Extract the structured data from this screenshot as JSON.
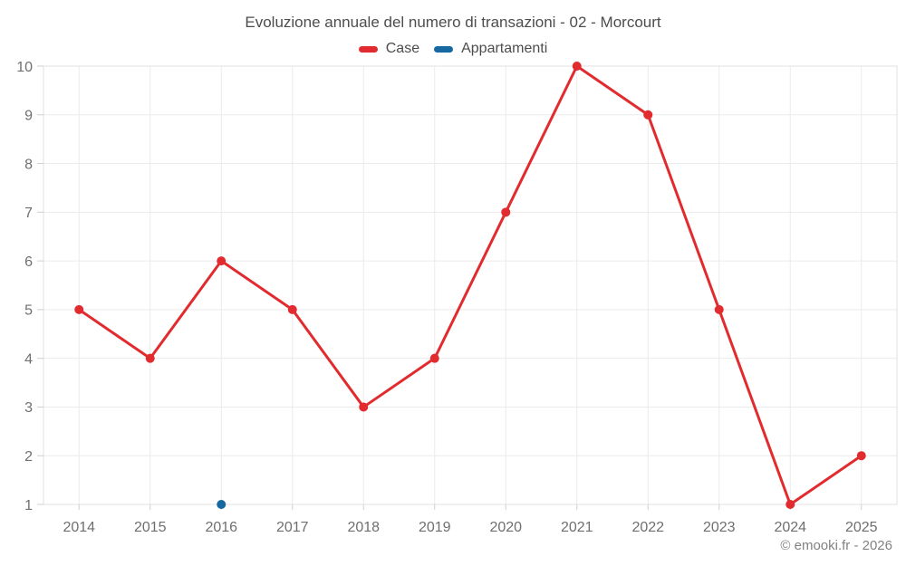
{
  "footer": {
    "copyright": "© emooki.fr - 2026"
  },
  "chart_data": {
    "type": "line",
    "title": "Evoluzione annuale del numero di transazioni - 02 - Morcourt",
    "categories": [
      "2014",
      "2015",
      "2016",
      "2017",
      "2018",
      "2019",
      "2020",
      "2021",
      "2022",
      "2023",
      "2024",
      "2025"
    ],
    "series": [
      {
        "name": "Case",
        "color": "#e12b2e",
        "values": [
          5,
          4,
          6,
          5,
          3,
          4,
          7,
          10,
          9,
          5,
          1,
          2
        ]
      },
      {
        "name": "Appartamenti",
        "color": "#1569a0",
        "values": [
          null,
          null,
          1,
          null,
          null,
          null,
          null,
          null,
          null,
          null,
          null,
          null
        ]
      }
    ],
    "xlabel": "",
    "ylabel": "",
    "ylim": [
      1,
      10
    ],
    "ytick_step": 1,
    "grid": true,
    "legend_position": "top",
    "grid_color": "#ebebeb",
    "border_color": "#e0e0e0",
    "tick_color": "#cfcfcf",
    "axis_label_color": "#6f6f6f",
    "marker_radius": 5,
    "line_width": 3
  }
}
